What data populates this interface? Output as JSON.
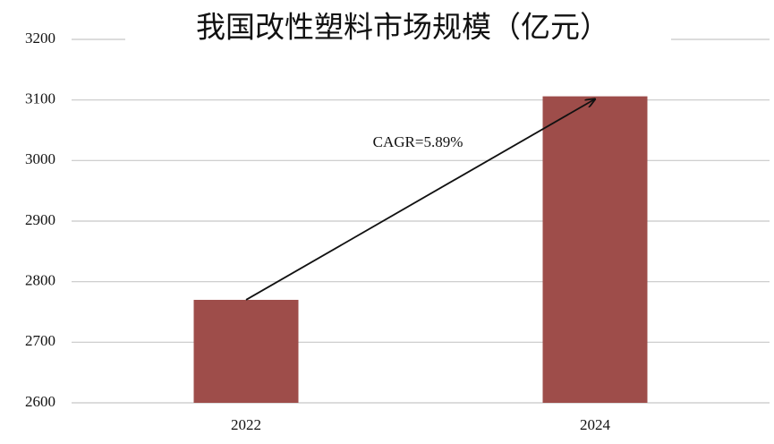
{
  "chart_data": {
    "type": "bar",
    "title": "我国改性塑料市场规模（亿元）",
    "categories": [
      "2022",
      "2024"
    ],
    "values": [
      2770,
      3106
    ],
    "color": "#9e4d4a",
    "ylim": [
      2600,
      3200
    ],
    "yticks": [
      2600,
      2700,
      2800,
      2900,
      3000,
      3100,
      3200
    ],
    "grid": true,
    "annotation": "CAGR=5.89%"
  }
}
